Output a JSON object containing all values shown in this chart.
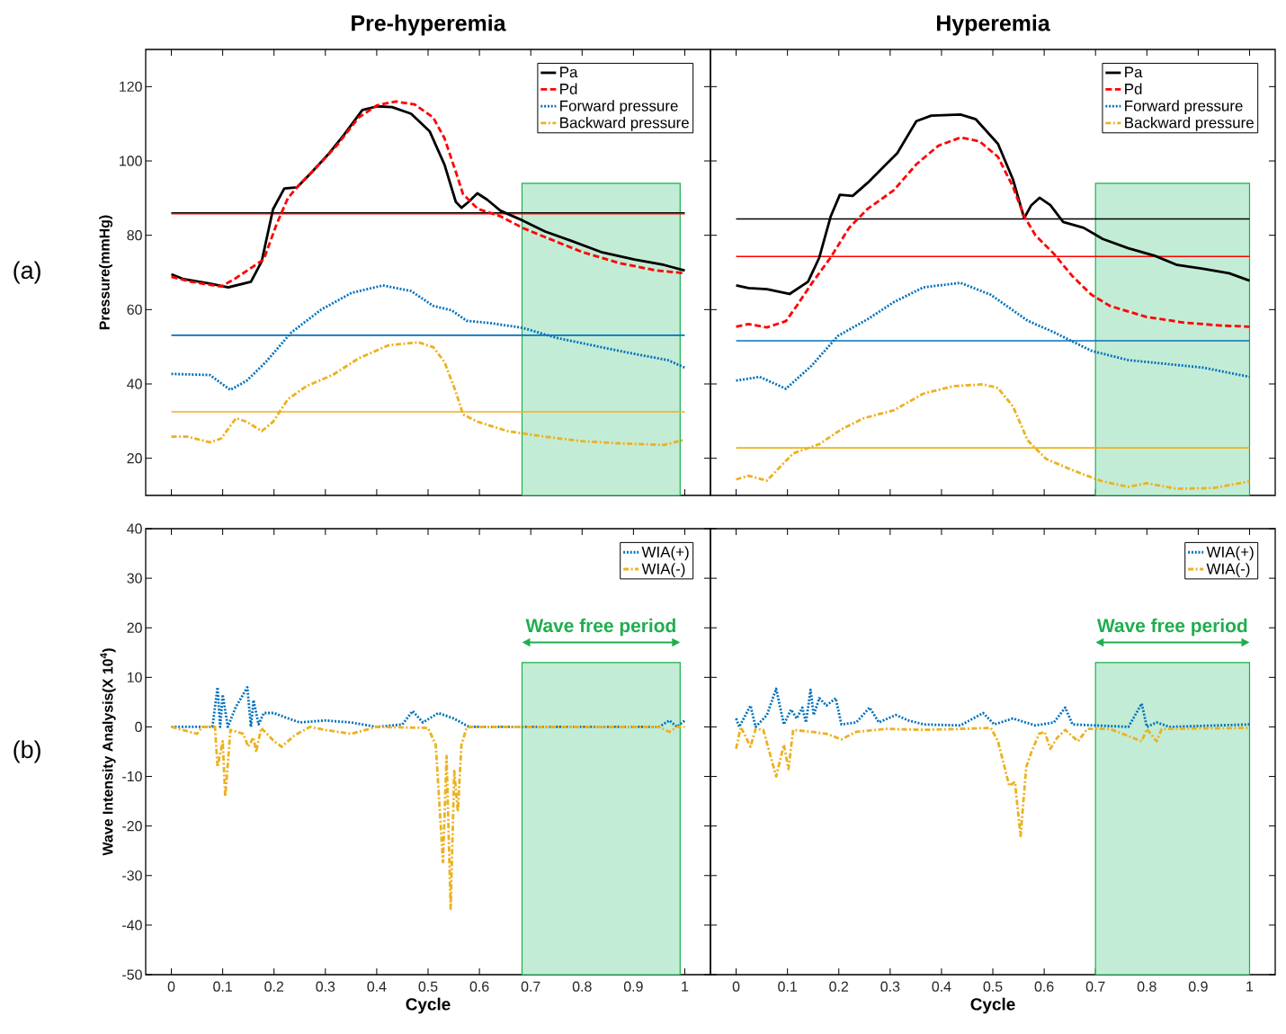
{
  "chart_data": [
    {
      "type": "line",
      "title": "Pre-hyperemia",
      "ylabel": "Pressure(mmHg)",
      "xlim": [
        -0.05,
        1.05
      ],
      "ylim": [
        10,
        130
      ],
      "xticks": [
        0,
        0.1,
        0.2,
        0.3,
        0.4,
        0.5,
        0.6,
        0.7,
        0.8,
        0.9,
        1
      ],
      "yticks": [
        20,
        40,
        60,
        80,
        100,
        120
      ],
      "tick_labels": "y",
      "legend": "top right",
      "annotations": [
        "(a)"
      ],
      "series": [
        {
          "name": "Pa",
          "color": "#000000",
          "line_style": "solid",
          "x": [
            0,
            0.024,
            0.075,
            0.111,
            0.155,
            0.176,
            0.198,
            0.22,
            0.245,
            0.271,
            0.307,
            0.336,
            0.372,
            0.401,
            0.43,
            0.467,
            0.503,
            0.532,
            0.554,
            0.565,
            0.579,
            0.596,
            0.615,
            0.641,
            0.684,
            0.728,
            0.779,
            0.837,
            0.902,
            0.96,
            1
          ],
          "values": [
            69.5,
            68.2,
            67,
            66,
            67.5,
            73,
            87,
            92.6,
            92.9,
            96.6,
            102,
            107,
            113.7,
            114.7,
            114.5,
            112.7,
            108,
            99,
            89,
            87.4,
            89,
            91.3,
            89.6,
            86.6,
            84,
            81,
            78.5,
            75.5,
            73.5,
            72,
            70.5
          ]
        },
        {
          "name": "Pd",
          "color": "#ff0000",
          "line_style": "dashed",
          "x": [
            0,
            0.038,
            0.097,
            0.126,
            0.155,
            0.18,
            0.205,
            0.227,
            0.249,
            0.278,
            0.322,
            0.365,
            0.401,
            0.437,
            0.474,
            0.51,
            0.532,
            0.554,
            0.568,
            0.597,
            0.641,
            0.684,
            0.728,
            0.8,
            0.873,
            0.946,
            1
          ],
          "values": [
            68.8,
            67.5,
            66.2,
            68.5,
            71.2,
            73.5,
            83,
            90,
            93.6,
            97.6,
            104.1,
            111.7,
            115,
            116,
            115.2,
            111.7,
            106.1,
            97.1,
            91.1,
            87.1,
            85.1,
            82,
            79.5,
            75.5,
            72.5,
            70.5,
            69.8
          ]
        },
        {
          "name": "Forward pressure",
          "color": "#0072bd",
          "line_style": "dotted",
          "x": [
            0,
            0.075,
            0.115,
            0.147,
            0.184,
            0.234,
            0.292,
            0.351,
            0.412,
            0.467,
            0.51,
            0.546,
            0.575,
            0.619,
            0.684,
            0.75,
            0.837,
            0.909,
            0.967,
            1
          ],
          "values": [
            42.7,
            42.4,
            38.4,
            40.9,
            45.9,
            53.9,
            60,
            64.5,
            66.5,
            65,
            61,
            59.8,
            57,
            56.4,
            55.1,
            52.4,
            49.9,
            47.9,
            46.4,
            44.4
          ]
        },
        {
          "name": "Backward pressure",
          "color": "#edb120",
          "line_style": "dashdot",
          "x": [
            0,
            0.031,
            0.075,
            0.097,
            0.126,
            0.147,
            0.176,
            0.198,
            0.227,
            0.263,
            0.314,
            0.365,
            0.423,
            0.481,
            0.51,
            0.532,
            0.554,
            0.568,
            0.597,
            0.655,
            0.728,
            0.8,
            0.873,
            0.96,
            1
          ],
          "values": [
            25.8,
            25.8,
            24.3,
            25.3,
            30.8,
            29.8,
            27.3,
            29.8,
            35.9,
            39.4,
            42.4,
            46.9,
            50.4,
            51.2,
            49.9,
            45.9,
            37.9,
            31.8,
            29.8,
            27.3,
            25.8,
            24.6,
            24,
            23.6,
            25
          ]
        }
      ],
      "ref_lines": [
        {
          "axis": "y",
          "value": 86,
          "color": "#000000"
        },
        {
          "axis": "y",
          "value": 85.8,
          "color": "#ff0000"
        },
        {
          "axis": "y",
          "value": 53.1,
          "color": "#0072bd"
        },
        {
          "axis": "y",
          "value": 32.5,
          "color": "#edb120"
        }
      ],
      "bands": [
        {
          "axis": "x",
          "from": 0.683,
          "to": 0.991,
          "color": "#c3ecd6"
        }
      ]
    },
    {
      "type": "line",
      "title": "Hyperemia",
      "xlim": [
        -0.05,
        1.05
      ],
      "ylim": [
        10,
        130
      ],
      "xticks": [
        0,
        0.1,
        0.2,
        0.3,
        0.4,
        0.5,
        0.6,
        0.7,
        0.8,
        0.9,
        1
      ],
      "yticks": [
        20,
        40,
        60,
        80,
        100,
        120
      ],
      "tick_labels": false,
      "legend": "top right",
      "series": [
        {
          "name": "Pa",
          "color": "#000000",
          "line_style": "solid",
          "x": [
            0,
            0.024,
            0.06,
            0.104,
            0.14,
            0.162,
            0.184,
            0.202,
            0.227,
            0.256,
            0.292,
            0.314,
            0.351,
            0.38,
            0.437,
            0.467,
            0.51,
            0.539,
            0.561,
            0.575,
            0.591,
            0.612,
            0.637,
            0.677,
            0.714,
            0.764,
            0.815,
            0.859,
            0.909,
            0.96,
            1
          ],
          "values": [
            66.5,
            65.8,
            65.5,
            64.2,
            67.5,
            74,
            85,
            90.9,
            90.6,
            94.1,
            99.1,
            102.1,
            110.7,
            112.2,
            112.5,
            111.2,
            104.6,
            95.1,
            84.6,
            88.1,
            90.1,
            88.1,
            83.6,
            82,
            79,
            76.5,
            74.5,
            72,
            71,
            69.8,
            67.8
          ]
        },
        {
          "name": "Pd",
          "color": "#ff0000",
          "line_style": "dashed",
          "x": [
            0,
            0.024,
            0.06,
            0.097,
            0.118,
            0.147,
            0.184,
            0.22,
            0.256,
            0.307,
            0.351,
            0.394,
            0.437,
            0.474,
            0.51,
            0.539,
            0.561,
            0.583,
            0.619,
            0.655,
            0.692,
            0.728,
            0.8,
            0.873,
            0.946,
            1
          ],
          "values": [
            55.4,
            56.1,
            55.2,
            56.9,
            61,
            67,
            74,
            82,
            87.1,
            92.1,
            99.1,
            104.1,
            106.3,
            105.3,
            101.1,
            93.1,
            85.1,
            80,
            75,
            69,
            64,
            61,
            58,
            56.5,
            55.7,
            55.4
          ]
        },
        {
          "name": "Forward pressure",
          "color": "#0072bd",
          "line_style": "dotted",
          "x": [
            0,
            0.046,
            0.097,
            0.147,
            0.198,
            0.256,
            0.307,
            0.365,
            0.437,
            0.496,
            0.568,
            0.619,
            0.692,
            0.764,
            0.837,
            0.909,
            1
          ],
          "values": [
            40.9,
            41.9,
            38.7,
            44.9,
            52.9,
            57.4,
            62,
            66,
            67.2,
            64,
            57,
            53.9,
            48.9,
            46.4,
            45.4,
            44.4,
            41.9
          ]
        },
        {
          "name": "Backward pressure",
          "color": "#edb120",
          "line_style": "dashdot",
          "x": [
            0,
            0.024,
            0.06,
            0.111,
            0.162,
            0.205,
            0.249,
            0.307,
            0.365,
            0.423,
            0.481,
            0.51,
            0.539,
            0.568,
            0.604,
            0.655,
            0.713,
            0.764,
            0.8,
            0.858,
            0.931,
            1
          ],
          "values": [
            14.3,
            15.3,
            14,
            21.3,
            23.8,
            27.8,
            30.8,
            32.9,
            37.4,
            39.4,
            39.9,
            38.9,
            34,
            24.8,
            19.8,
            16.8,
            13.8,
            12.3,
            13.3,
            11.8,
            12,
            13.8
          ]
        }
      ],
      "ref_lines": [
        {
          "axis": "y",
          "value": 84.4,
          "color": "#000000"
        },
        {
          "axis": "y",
          "value": 74.3,
          "color": "#ff0000"
        },
        {
          "axis": "y",
          "value": 51.6,
          "color": "#0072bd"
        },
        {
          "axis": "y",
          "value": 22.8,
          "color": "#edb120"
        }
      ],
      "bands": [
        {
          "axis": "x",
          "from": 0.7,
          "to": 1,
          "color": "#c3ecd6"
        }
      ]
    },
    {
      "type": "line",
      "xlabel": "Cycle",
      "ylabel": "Wave Intensity Analysis(X 10$^{4}$)",
      "xlim": [
        -0.05,
        1.05
      ],
      "ylim": [
        -50,
        40
      ],
      "xticks": [
        0,
        0.1,
        0.2,
        0.3,
        0.4,
        0.5,
        0.6,
        0.7,
        0.8,
        0.9,
        1
      ],
      "yticks": [
        -50,
        -40,
        -30,
        -20,
        -10,
        0,
        10,
        20,
        30,
        40
      ],
      "legend": "top right",
      "annotations": [
        "(b)"
      ],
      "series": [
        {
          "name": "WIA(+)",
          "color": "#0072bd",
          "line_style": "dotted",
          "x": [
            0,
            0.08,
            0.09,
            0.095,
            0.1,
            0.11,
            0.125,
            0.148,
            0.155,
            0.16,
            0.17,
            0.18,
            0.2,
            0.22,
            0.25,
            0.3,
            0.35,
            0.4,
            0.45,
            0.47,
            0.49,
            0.52,
            0.55,
            0.58,
            0.95,
            0.97,
            0.985,
            1
          ],
          "values": [
            0,
            0,
            8,
            0,
            6.5,
            0,
            3.9,
            8,
            0,
            5.4,
            0.5,
            2.8,
            2.8,
            2,
            0.9,
            1.3,
            0.9,
            0,
            0.5,
            3.2,
            0.9,
            2.8,
            1.7,
            0,
            0,
            1.3,
            0,
            1.3
          ]
        },
        {
          "name": "WIA(-)",
          "color": "#edb120",
          "line_style": "dashdot",
          "x": [
            0,
            0.05,
            0.06,
            0.085,
            0.09,
            0.1,
            0.105,
            0.115,
            0.14,
            0.15,
            0.16,
            0.165,
            0.175,
            0.2,
            0.215,
            0.24,
            0.27,
            0.3,
            0.35,
            0.4,
            0.5,
            0.515,
            0.529,
            0.536,
            0.544,
            0.551,
            0.558,
            0.565,
            0.575,
            0.583,
            0.95,
            0.97,
            0.985,
            1
          ],
          "values": [
            0,
            -1.4,
            0,
            0,
            -8.1,
            -2.9,
            -14.1,
            -0.6,
            -1.4,
            -4,
            -2.1,
            -5.1,
            -0.2,
            -2.9,
            -4,
            -1.7,
            0,
            -0.6,
            -1.4,
            0,
            -0.2,
            -3.6,
            -27.3,
            -5.9,
            -36.7,
            -8.9,
            -17.1,
            -3.6,
            -0.2,
            0,
            0,
            -1,
            0,
            0
          ]
        }
      ],
      "bands": [
        {
          "axis": "x",
          "from": 0.683,
          "to": 0.991,
          "color": "#c3ecd6",
          "label": "Wave free period"
        }
      ]
    },
    {
      "type": "line",
      "xlabel": "Cycle",
      "xlim": [
        -0.05,
        1.05
      ],
      "ylim": [
        -50,
        40
      ],
      "xticks": [
        0,
        0.1,
        0.2,
        0.3,
        0.4,
        0.5,
        0.6,
        0.7,
        0.8,
        0.9,
        1
      ],
      "yticks": [
        -50,
        -40,
        -30,
        -20,
        -10,
        0,
        10,
        20,
        30,
        40
      ],
      "tick_labels": "x",
      "legend": "top right",
      "series": [
        {
          "name": "WIA(+)",
          "color": "#0072bd",
          "line_style": "dotted",
          "x": [
            0,
            0.006,
            0.028,
            0.038,
            0.06,
            0.078,
            0.093,
            0.107,
            0.118,
            0.129,
            0.136,
            0.145,
            0.151,
            0.162,
            0.176,
            0.194,
            0.205,
            0.234,
            0.26,
            0.278,
            0.311,
            0.336,
            0.365,
            0.437,
            0.481,
            0.503,
            0.539,
            0.583,
            0.619,
            0.641,
            0.655,
            0.699,
            0.764,
            0.79,
            0.8,
            0.819,
            0.844,
            1
          ],
          "values": [
            1.7,
            0,
            4.3,
            0,
            2.4,
            7.7,
            0.5,
            3.5,
            1.7,
            3.9,
            0.9,
            7.5,
            2.4,
            5.8,
            4.3,
            5.8,
            0.5,
            0.9,
            3.9,
            0.9,
            2.4,
            1.3,
            0.5,
            0.3,
            2.8,
            0.5,
            1.7,
            0.3,
            0.9,
            3.9,
            0.5,
            0.3,
            0,
            4.7,
            0,
            0.9,
            0,
            0.5
          ]
        },
        {
          "name": "WIA(-)",
          "color": "#edb120",
          "line_style": "dashdot",
          "x": [
            0,
            0.009,
            0.028,
            0.038,
            0.053,
            0.078,
            0.093,
            0.102,
            0.111,
            0.147,
            0.176,
            0.205,
            0.234,
            0.292,
            0.365,
            0.437,
            0.496,
            0.51,
            0.532,
            0.543,
            0.554,
            0.565,
            0.575,
            0.59,
            0.601,
            0.612,
            0.626,
            0.641,
            0.666,
            0.684,
            0.728,
            0.79,
            0.8,
            0.819,
            0.829,
            1
          ],
          "values": [
            -4.4,
            0,
            -4,
            -0.4,
            -0.6,
            -10,
            -3.6,
            -8.5,
            -0.6,
            -1,
            -1.4,
            -2.5,
            -1,
            -0.4,
            -0.6,
            -0.4,
            -0.2,
            -2.9,
            -11.9,
            -11.1,
            -22,
            -8.1,
            -5.1,
            -1.4,
            -1,
            -4.4,
            -2.1,
            -0.6,
            -2.9,
            -0.4,
            -0.4,
            -2.9,
            -0.4,
            -2.9,
            -0.4,
            -0.2
          ]
        }
      ],
      "bands": [
        {
          "axis": "x",
          "from": 0.7,
          "to": 1,
          "color": "#c3ecd6",
          "label": "Wave free period"
        }
      ]
    }
  ]
}
